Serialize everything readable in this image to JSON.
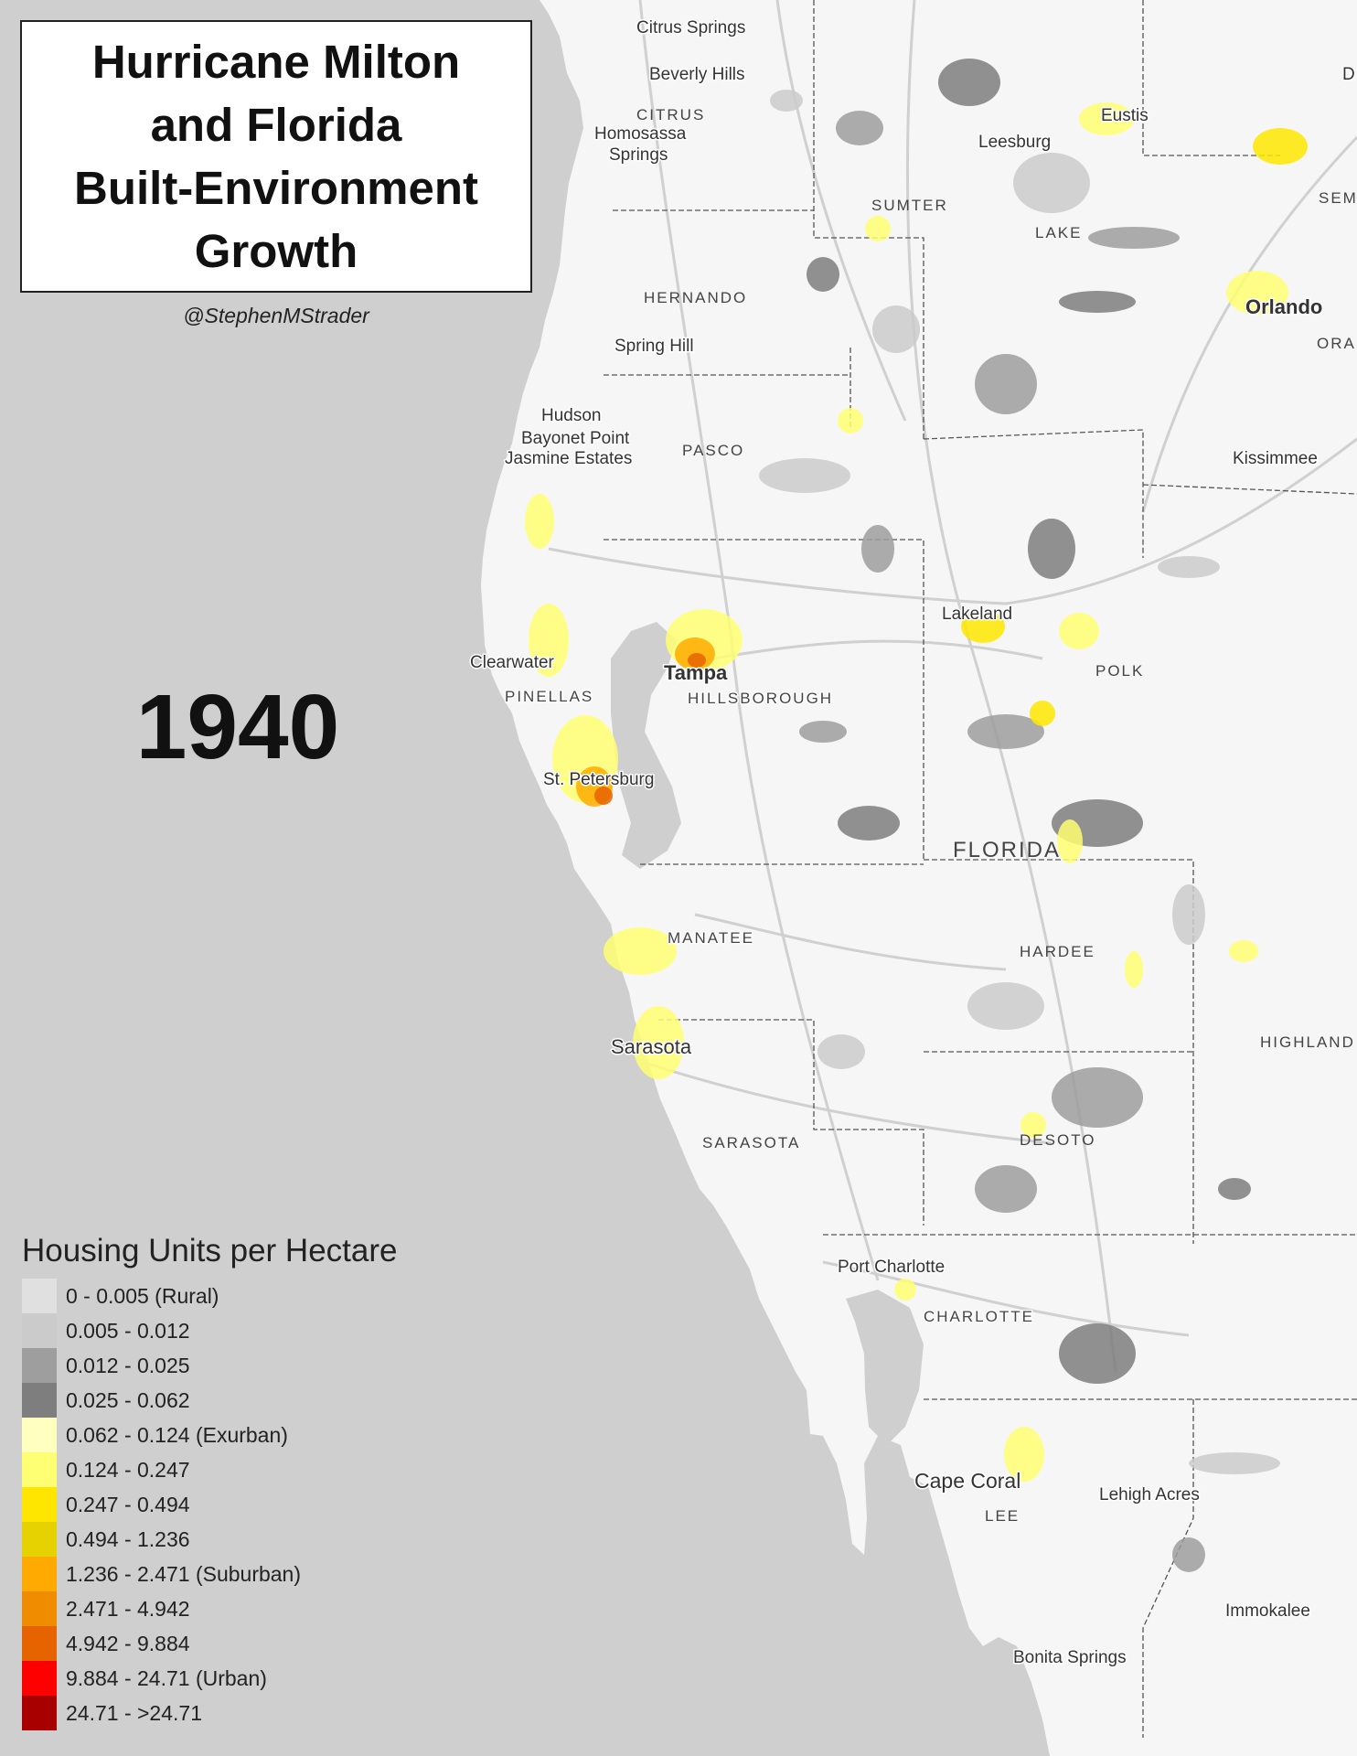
{
  "title": "Hurricane Milton\nand Florida\nBuilt-Environment\nGrowth",
  "author": "@StephenMStrader",
  "year": "1940",
  "map": {
    "state_label": "FLORIDA",
    "cities": [
      {
        "name": "Citrus Springs",
        "key": "citrus-springs"
      },
      {
        "name": "Beverly Hills",
        "key": "beverly-hills"
      },
      {
        "name": "Homosassa",
        "key": "homosassa"
      },
      {
        "name": "Springs",
        "key": "springs"
      },
      {
        "name": "Eustis",
        "key": "eustis"
      },
      {
        "name": "Leesburg",
        "key": "leesburg"
      },
      {
        "name": "Orlando",
        "key": "orlando"
      },
      {
        "name": "Spring Hill",
        "key": "spring-hill"
      },
      {
        "name": "Hudson",
        "key": "hudson"
      },
      {
        "name": "Bayonet Point",
        "key": "bayonet-point"
      },
      {
        "name": "Jasmine Estates",
        "key": "jasmine-estates"
      },
      {
        "name": "Kissimmee",
        "key": "kissimmee"
      },
      {
        "name": "Lakeland",
        "key": "lakeland"
      },
      {
        "name": "Clearwater",
        "key": "clearwater"
      },
      {
        "name": "Tampa",
        "key": "tampa"
      },
      {
        "name": "St. Petersburg",
        "key": "st-petersburg"
      },
      {
        "name": "Sarasota",
        "key": "sarasota-city"
      },
      {
        "name": "Port Charlotte",
        "key": "port-charlotte"
      },
      {
        "name": "Cape Coral",
        "key": "cape-coral"
      },
      {
        "name": "Lehigh Acres",
        "key": "lehigh-acres"
      },
      {
        "name": "Immokalee",
        "key": "immokalee"
      },
      {
        "name": "Bonita Springs",
        "key": "bonita-springs"
      },
      {
        "name": "D",
        "key": "edge-d"
      }
    ],
    "counties": [
      {
        "name": "CITRUS",
        "key": "citrus"
      },
      {
        "name": "SUMTER",
        "key": "sumter"
      },
      {
        "name": "LAKE",
        "key": "lake"
      },
      {
        "name": "SEM",
        "key": "seminole"
      },
      {
        "name": "ORA",
        "key": "orange"
      },
      {
        "name": "HERNANDO",
        "key": "hernando"
      },
      {
        "name": "PASCO",
        "key": "pasco"
      },
      {
        "name": "PINELLAS",
        "key": "pinellas"
      },
      {
        "name": "HILLSBOROUGH",
        "key": "hillsborough"
      },
      {
        "name": "POLK",
        "key": "polk"
      },
      {
        "name": "MANATEE",
        "key": "manatee"
      },
      {
        "name": "HARDEE",
        "key": "hardee"
      },
      {
        "name": "HIGHLAND",
        "key": "highlands"
      },
      {
        "name": "SARASOTA",
        "key": "sarasota"
      },
      {
        "name": "DESOTO",
        "key": "desoto"
      },
      {
        "name": "CHARLOTTE",
        "key": "charlotte"
      },
      {
        "name": "LEE",
        "key": "lee"
      }
    ],
    "colors": {
      "water": "#cfcfcf",
      "land": "#f6f6f6",
      "road": "#d0d0d0",
      "boundary": "#555555"
    }
  },
  "legend": {
    "title": "Housing Units per Hectare",
    "items": [
      {
        "label": "0 - 0.005 (Rural)",
        "color": "#e0e0e0"
      },
      {
        "label": "0.005 - 0.012",
        "color": "#cbcbcb"
      },
      {
        "label": "0.012 - 0.025",
        "color": "#9e9e9e"
      },
      {
        "label": "0.025 - 0.062",
        "color": "#7e7e7e"
      },
      {
        "label": "0.062 - 0.124 (Exurban)",
        "color": "#ffffc0"
      },
      {
        "label": "0.124 - 0.247",
        "color": "#ffff73"
      },
      {
        "label": "0.247 - 0.494",
        "color": "#ffe600"
      },
      {
        "label": "0.494 - 1.236",
        "color": "#e6d200"
      },
      {
        "label": "1.236 - 2.471 (Suburban)",
        "color": "#ffaa00"
      },
      {
        "label": "2.471 - 4.942",
        "color": "#f08c00"
      },
      {
        "label": "4.942 - 9.884",
        "color": "#e66400"
      },
      {
        "label": "9.884 - 24.71 (Urban)",
        "color": "#ff0000"
      },
      {
        "label": "24.71 - >24.71",
        "color": "#a80000"
      }
    ]
  }
}
